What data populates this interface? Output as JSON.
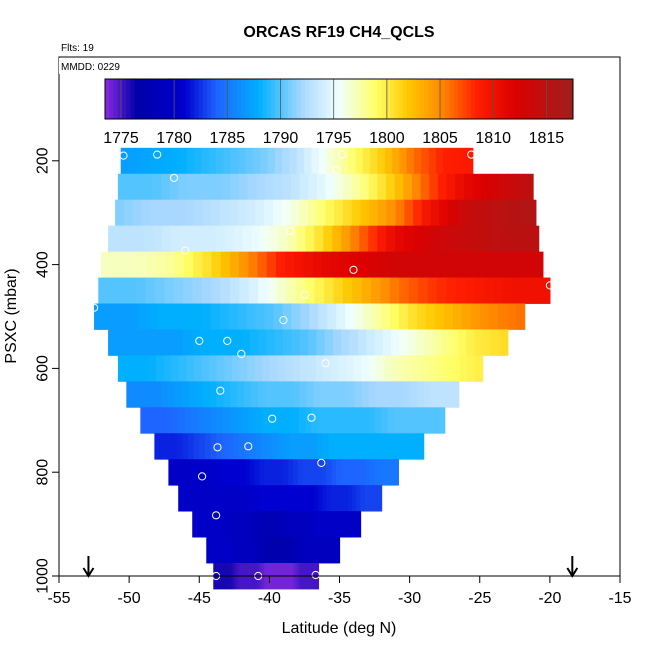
{
  "chart_data": {
    "type": "heatmap",
    "title": "ORCAS RF19 CH4_QCLS",
    "notes": [
      "Flts: 19",
      "MMDD: 0229"
    ],
    "xlabel": "Latitude (deg N)",
    "ylabel": "PSXC (mbar)",
    "xlim": [
      -55,
      -15
    ],
    "ylim": [
      1000,
      0
    ],
    "xticks": [
      "-55",
      "-50",
      "-45",
      "-40",
      "-35",
      "-30",
      "-25",
      "-20",
      "-15"
    ],
    "yticks": [
      "200",
      "400",
      "600",
      "800",
      "1000"
    ],
    "colorbar": {
      "min": 1773.5,
      "max": 1817.5,
      "ticks": [
        "1775",
        "1780",
        "1785",
        "1790",
        "1795",
        "1800",
        "1805",
        "1810",
        "1815"
      ],
      "stops": [
        {
          "v": 1773.5,
          "c": "#8a2be2"
        },
        {
          "v": 1776.5,
          "c": "#0000a8"
        },
        {
          "v": 1781.0,
          "c": "#0000d0"
        },
        {
          "v": 1784.0,
          "c": "#1e64ff"
        },
        {
          "v": 1788.0,
          "c": "#00b0ff"
        },
        {
          "v": 1792.0,
          "c": "#a8d8ff"
        },
        {
          "v": 1795.5,
          "c": "#f0ffff"
        },
        {
          "v": 1799.0,
          "c": "#ffff66"
        },
        {
          "v": 1802.0,
          "c": "#ffc800"
        },
        {
          "v": 1805.0,
          "c": "#ff8c00"
        },
        {
          "v": 1808.5,
          "c": "#ff1e00"
        },
        {
          "v": 1812.0,
          "c": "#dc0000"
        },
        {
          "v": 1817.5,
          "c": "#a01e1e"
        }
      ]
    },
    "bands": [
      {
        "p": 200,
        "lat_min": -50.6,
        "lat_max": -25.5,
        "ch4": [
          1787,
          1787.5,
          1788,
          1789,
          1790,
          1791,
          1793,
          1796,
          1799,
          1802,
          1806,
          1808.5,
          1809
        ]
      },
      {
        "p": 250,
        "lat_min": -50.8,
        "lat_max": -21.2,
        "ch4": [
          1790,
          1790,
          1791,
          1791,
          1792,
          1793,
          1795,
          1798,
          1802,
          1807,
          1811,
          1813,
          1815
        ]
      },
      {
        "p": 300,
        "lat_min": -51.0,
        "lat_max": -21.0,
        "ch4": [
          1791,
          1792,
          1792,
          1793,
          1794,
          1796,
          1799,
          1802,
          1805,
          1810,
          1814,
          1815,
          1816
        ]
      },
      {
        "p": 350,
        "lat_min": -51.5,
        "lat_max": -20.8,
        "ch4": [
          1793,
          1793,
          1794,
          1794,
          1795,
          1797,
          1801,
          1806,
          1811,
          1813,
          1814,
          1815,
          1815
        ]
      },
      {
        "p": 400,
        "lat_min": -52.0,
        "lat_max": -20.5,
        "ch4": [
          1797,
          1797,
          1798,
          1801,
          1805,
          1809,
          1811,
          1812,
          1813,
          1813,
          1813,
          1813,
          1813
        ]
      },
      {
        "p": 450,
        "lat_min": -52.2,
        "lat_max": -20.0,
        "ch4": [
          1790,
          1790,
          1791,
          1792,
          1794,
          1797,
          1800,
          1803,
          1806,
          1808,
          1809,
          1810,
          1810
        ]
      },
      {
        "p": 500,
        "lat_min": -52.5,
        "lat_max": -21.8,
        "ch4": [
          1787,
          1787,
          1788,
          1788,
          1789,
          1790,
          1792,
          1795,
          1798,
          1801,
          1803,
          1805,
          1806
        ]
      },
      {
        "p": 550,
        "lat_min": -51.5,
        "lat_max": -23.0,
        "ch4": [
          1787,
          1787,
          1787,
          1788,
          1788,
          1789,
          1790,
          1792,
          1794,
          1796,
          1798,
          1800,
          1801
        ]
      },
      {
        "p": 600,
        "lat_min": -50.8,
        "lat_max": -24.8,
        "ch4": [
          1788,
          1788,
          1789,
          1790,
          1791,
          1792,
          1793,
          1794,
          1795,
          1797,
          1798,
          1799,
          1800
        ]
      },
      {
        "p": 650,
        "lat_min": -50.2,
        "lat_max": -26.5,
        "ch4": [
          1786,
          1786,
          1787,
          1788,
          1789,
          1790,
          1790,
          1791,
          1791,
          1792,
          1792,
          1793,
          1793
        ]
      },
      {
        "p": 700,
        "lat_min": -49.2,
        "lat_max": -27.5,
        "ch4": [
          1784,
          1784,
          1785,
          1786,
          1787,
          1788,
          1788,
          1789,
          1789,
          1789,
          1790,
          1790,
          1790
        ]
      },
      {
        "p": 750,
        "lat_min": -48.2,
        "lat_max": -29.0,
        "ch4": [
          1782,
          1782,
          1783,
          1784,
          1785,
          1786,
          1787,
          1787,
          1788,
          1788,
          1788,
          1788,
          1788
        ]
      },
      {
        "p": 800,
        "lat_min": -47.2,
        "lat_max": -30.8,
        "ch4": [
          1780,
          1780,
          1780,
          1781,
          1781,
          1782,
          1782,
          1783,
          1783,
          1784,
          1784,
          1785,
          1785
        ]
      },
      {
        "p": 850,
        "lat_min": -46.5,
        "lat_max": -32.0,
        "ch4": [
          1780,
          1780,
          1780,
          1780,
          1780,
          1781,
          1781,
          1781,
          1781,
          1782,
          1782,
          1783,
          1783
        ]
      },
      {
        "p": 900,
        "lat_min": -45.5,
        "lat_max": -33.5,
        "ch4": [
          1780,
          1780,
          1780,
          1779,
          1779,
          1778,
          1778,
          1779,
          1779,
          1780,
          1780,
          1780,
          1780
        ]
      },
      {
        "p": 950,
        "lat_min": -44.5,
        "lat_max": -35.0,
        "ch4": [
          1780,
          1780,
          1780,
          1779,
          1779,
          1778,
          1777,
          1777,
          1778,
          1779,
          1779,
          1779,
          1779
        ]
      },
      {
        "p": 1000,
        "lat_min": -44.0,
        "lat_max": -36.5,
        "ch4": [
          1776,
          1776,
          1776,
          1775,
          1775,
          1775,
          1774,
          1774,
          1774,
          1774,
          1775,
          1775,
          1775
        ]
      }
    ],
    "circles": [
      {
        "lat": -50.4,
        "p": 190
      },
      {
        "lat": -48.0,
        "p": 188
      },
      {
        "lat": -34.8,
        "p": 188
      },
      {
        "lat": -25.6,
        "p": 188
      },
      {
        "lat": -46.8,
        "p": 233
      },
      {
        "lat": -35.2,
        "p": 218
      },
      {
        "lat": -21.2,
        "p": 216
      },
      {
        "lat": -38.5,
        "p": 335
      },
      {
        "lat": -46.0,
        "p": 373
      },
      {
        "lat": -34.0,
        "p": 410
      },
      {
        "lat": -20.0,
        "p": 440
      },
      {
        "lat": -37.5,
        "p": 458
      },
      {
        "lat": -52.5,
        "p": 483
      },
      {
        "lat": -39.0,
        "p": 507
      },
      {
        "lat": -45.0,
        "p": 547
      },
      {
        "lat": -43.0,
        "p": 547
      },
      {
        "lat": -42.0,
        "p": 572
      },
      {
        "lat": -36.0,
        "p": 590
      },
      {
        "lat": -43.5,
        "p": 643
      },
      {
        "lat": -39.8,
        "p": 697
      },
      {
        "lat": -37.0,
        "p": 695
      },
      {
        "lat": -43.7,
        "p": 752
      },
      {
        "lat": -41.5,
        "p": 750
      },
      {
        "lat": -36.3,
        "p": 782
      },
      {
        "lat": -44.8,
        "p": 808
      },
      {
        "lat": -43.8,
        "p": 883
      },
      {
        "lat": -43.8,
        "p": 1000
      },
      {
        "lat": -40.8,
        "p": 1000
      },
      {
        "lat": -36.7,
        "p": 998
      }
    ],
    "arrows_lat": [
      -52.9,
      -18.4
    ]
  }
}
